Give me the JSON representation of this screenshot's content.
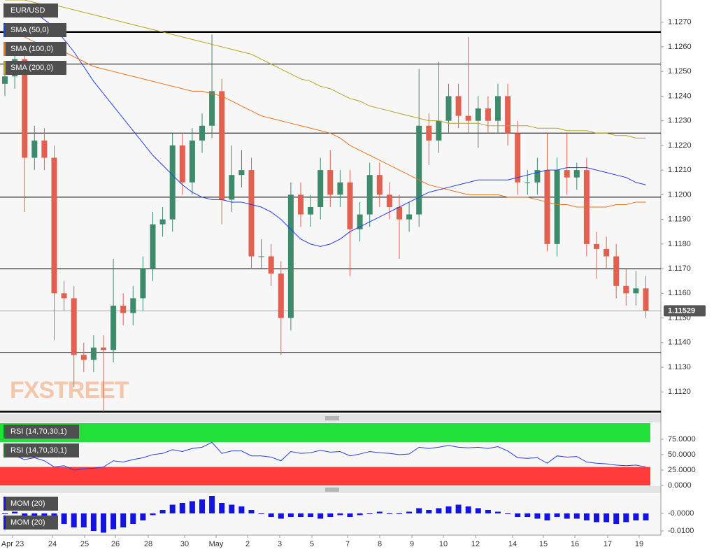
{
  "chart_data": {
    "type": "candlestick",
    "title": "EUR/USD",
    "watermark": "FXSTREET",
    "up_color": "#3d8b6b",
    "down_color": "#e2604f",
    "ylim": [
      1.1111,
      1.1279
    ],
    "yticks": [
      {
        "value": 1.112,
        "label": "1.1120"
      },
      {
        "value": 1.113,
        "label": "1.1130"
      },
      {
        "value": 1.114,
        "label": "1.1140"
      },
      {
        "value": 1.115,
        "label": "1.1150"
      },
      {
        "value": 1.116,
        "label": "1.1160"
      },
      {
        "value": 1.117,
        "label": "1.1170"
      },
      {
        "value": 1.118,
        "label": "1.1180"
      },
      {
        "value": 1.119,
        "label": "1.1190"
      },
      {
        "value": 1.12,
        "label": "1.1200"
      },
      {
        "value": 1.121,
        "label": "1.1210"
      },
      {
        "value": 1.122,
        "label": "1.1220"
      },
      {
        "value": 1.123,
        "label": "1.1230"
      },
      {
        "value": 1.124,
        "label": "1.1240"
      },
      {
        "value": 1.125,
        "label": "1.1250"
      },
      {
        "value": 1.126,
        "label": "1.1260"
      },
      {
        "value": 1.127,
        "label": "1.1270"
      }
    ],
    "levels": [
      1.1266,
      1.1253,
      1.1225,
      1.1199,
      1.117,
      1.1136,
      1.1112
    ],
    "current_price": 1.11529,
    "x_labels": [
      "Apr 23",
      "24",
      "25",
      "26",
      "28",
      "30",
      "May",
      "2",
      "3",
      "5",
      "7",
      "8",
      "9",
      "10",
      "12",
      "14",
      "15",
      "16",
      "17",
      "19"
    ],
    "open": [
      1.1245,
      1.1248,
      1.1255,
      1.1215,
      1.1222,
      1.1215,
      1.116,
      1.1158,
      1.1135,
      1.1133,
      1.1138,
      1.1137,
      1.1155,
      1.1152,
      1.1158,
      1.117,
      1.1188,
      1.119,
      1.122,
      1.1205,
      1.1222,
      1.1228,
      1.1242,
      1.1198,
      1.1208,
      1.121,
      1.1175,
      1.1175,
      1.1168,
      1.115,
      1.12,
      1.1192,
      1.1195,
      1.121,
      1.12,
      1.1205,
      1.1186,
      1.1192,
      1.1208,
      1.12,
      1.1195,
      1.119,
      1.1192,
      1.1228,
      1.1222,
      1.123,
      1.124,
      1.1232,
      1.123,
      1.1235,
      1.123,
      1.124,
      1.1225,
      1.1205,
      1.1205,
      1.121,
      1.118,
      1.121,
      1.1207,
      1.121,
      1.118,
      1.1178,
      1.1175,
      1.1163,
      1.116,
      1.1162
    ],
    "high": [
      1.1253,
      1.126,
      1.126,
      1.1228,
      1.1227,
      1.122,
      1.1165,
      1.1163,
      1.114,
      1.1143,
      1.1143,
      1.1174,
      1.116,
      1.1163,
      1.1175,
      1.1193,
      1.1195,
      1.1225,
      1.1225,
      1.1227,
      1.1233,
      1.1265,
      1.1247,
      1.122,
      1.1218,
      1.1215,
      1.1182,
      1.118,
      1.1173,
      1.1205,
      1.1205,
      1.12,
      1.1215,
      1.1218,
      1.121,
      1.121,
      1.1197,
      1.1213,
      1.1213,
      1.1205,
      1.12,
      1.1197,
      1.1251,
      1.1233,
      1.1254,
      1.1245,
      1.1245,
      1.1264,
      1.124,
      1.124,
      1.1245,
      1.1245,
      1.123,
      1.121,
      1.1215,
      1.1225,
      1.1215,
      1.1225,
      1.1213,
      1.1215,
      1.1185,
      1.1183,
      1.118,
      1.117,
      1.1169,
      1.1167
    ],
    "low": [
      1.124,
      1.1243,
      1.1193,
      1.121,
      1.121,
      1.1141,
      1.1153,
      1.1122,
      1.1128,
      1.1128,
      1.1112,
      1.1132,
      1.1147,
      1.1147,
      1.1153,
      1.1165,
      1.1183,
      1.1185,
      1.12,
      1.12,
      1.1217,
      1.1223,
      1.1188,
      1.1193,
      1.1203,
      1.117,
      1.117,
      1.1163,
      1.1135,
      1.1145,
      1.1187,
      1.1187,
      1.119,
      1.1195,
      1.1195,
      1.1167,
      1.1181,
      1.1187,
      1.1195,
      1.119,
      1.1174,
      1.1185,
      1.1187,
      1.1212,
      1.1217,
      1.1225,
      1.1227,
      1.1225,
      1.1219,
      1.1225,
      1.1225,
      1.122,
      1.12,
      1.12,
      1.12,
      1.1177,
      1.1175,
      1.12,
      1.1202,
      1.1175,
      1.1166,
      1.117,
      1.1158,
      1.1155,
      1.1155,
      1.115
    ],
    "close": [
      1.1248,
      1.1255,
      1.1215,
      1.1222,
      1.1215,
      1.116,
      1.1158,
      1.1135,
      1.1133,
      1.1138,
      1.1137,
      1.1155,
      1.1152,
      1.1158,
      1.117,
      1.1188,
      1.119,
      1.122,
      1.1205,
      1.1222,
      1.1228,
      1.1242,
      1.1198,
      1.1208,
      1.121,
      1.1175,
      1.1175,
      1.1168,
      1.115,
      1.12,
      1.1192,
      1.1195,
      1.121,
      1.12,
      1.1205,
      1.1186,
      1.1192,
      1.1208,
      1.12,
      1.1195,
      1.119,
      1.1192,
      1.1228,
      1.1222,
      1.123,
      1.124,
      1.1232,
      1.123,
      1.1235,
      1.123,
      1.124,
      1.1225,
      1.1205,
      1.1205,
      1.121,
      1.118,
      1.121,
      1.1207,
      1.121,
      1.118,
      1.1178,
      1.1175,
      1.1163,
      1.116,
      1.1162,
      1.1153
    ],
    "series": [
      {
        "name": "SMA (50,0)",
        "color": "#2340d8",
        "values": [
          1.1277,
          1.1277,
          1.1276,
          1.1274,
          1.1271,
          1.1268,
          1.1263,
          1.1258,
          1.1252,
          1.1246,
          1.1241,
          1.1236,
          1.1231,
          1.1226,
          1.1221,
          1.1216,
          1.1212,
          1.1208,
          1.1204,
          1.1201,
          1.1199,
          1.1198,
          1.1198,
          1.1197,
          1.1197,
          1.1196,
          1.1195,
          1.1193,
          1.119,
          1.1186,
          1.1182,
          1.118,
          1.1179,
          1.118,
          1.1182,
          1.1185,
          1.1187,
          1.1189,
          1.1191,
          1.1193,
          1.1195,
          1.1197,
          1.1199,
          1.1201,
          1.1202,
          1.1203,
          1.1204,
          1.1205,
          1.1206,
          1.1206,
          1.1206,
          1.1206,
          1.1207,
          1.1208,
          1.1209,
          1.121,
          1.121,
          1.1211,
          1.1211,
          1.1211,
          1.121,
          1.1209,
          1.1208,
          1.1207,
          1.1205,
          1.1204
        ]
      },
      {
        "name": "SMA (100,0)",
        "color": "#e8741c",
        "values": [
          1.1268,
          1.1266,
          1.1264,
          1.1262,
          1.1261,
          1.126,
          1.1258,
          1.1256,
          1.1254,
          1.1252,
          1.1251,
          1.125,
          1.1249,
          1.1248,
          1.1247,
          1.1246,
          1.1245,
          1.1244,
          1.1243,
          1.1242,
          1.1242,
          1.1241,
          1.124,
          1.1238,
          1.1236,
          1.1234,
          1.1232,
          1.1231,
          1.123,
          1.1229,
          1.1228,
          1.1227,
          1.1226,
          1.1225,
          1.1223,
          1.122,
          1.1218,
          1.1216,
          1.1214,
          1.1212,
          1.121,
          1.1208,
          1.1206,
          1.1204,
          1.1203,
          1.1202,
          1.1201,
          1.12,
          1.12,
          1.12,
          1.12,
          1.1199,
          1.1199,
          1.1199,
          1.1198,
          1.1197,
          1.1196,
          1.1196,
          1.1195,
          1.1195,
          1.1195,
          1.1195,
          1.1196,
          1.1196,
          1.1197,
          1.1197
        ]
      },
      {
        "name": "SMA (200,0)",
        "color": "#b5a323",
        "values": [
          1.1279,
          1.1279,
          1.1279,
          1.1278,
          1.1277,
          1.1277,
          1.1276,
          1.1275,
          1.1274,
          1.1273,
          1.1272,
          1.1271,
          1.127,
          1.1269,
          1.1268,
          1.1267,
          1.1266,
          1.1265,
          1.1264,
          1.1263,
          1.1262,
          1.1261,
          1.126,
          1.1259,
          1.1258,
          1.1257,
          1.1255,
          1.1253,
          1.1251,
          1.1249,
          1.1247,
          1.1246,
          1.1244,
          1.1243,
          1.1241,
          1.1239,
          1.1238,
          1.1236,
          1.1235,
          1.1234,
          1.1233,
          1.1232,
          1.1231,
          1.123,
          1.123,
          1.1229,
          1.1229,
          1.1229,
          1.1229,
          1.1228,
          1.1228,
          1.1228,
          1.1228,
          1.1228,
          1.1227,
          1.1227,
          1.1227,
          1.1226,
          1.1226,
          1.1226,
          1.1225,
          1.1225,
          1.1224,
          1.1224,
          1.1223,
          1.1223
        ]
      }
    ],
    "rsi": {
      "name": "RSI (14,70,30,1)",
      "color": "#2340d8",
      "overbought": 70,
      "oversold": 30,
      "ob_color": "#22e03a",
      "os_color": "#ff3b3b",
      "ylim": [
        0,
        101
      ],
      "yticks": [
        {
          "value": 0,
          "label": "0.0000"
        },
        {
          "value": 25,
          "label": "25.0000"
        },
        {
          "value": 50,
          "label": "50.0000"
        },
        {
          "value": 75,
          "label": "75.0000"
        }
      ],
      "values": [
        50,
        48,
        42,
        45,
        40,
        30,
        32,
        25,
        27,
        28,
        30,
        40,
        38,
        42,
        45,
        50,
        52,
        58,
        55,
        60,
        62,
        70,
        52,
        56,
        56,
        48,
        48,
        46,
        40,
        55,
        52,
        53,
        57,
        54,
        55,
        48,
        51,
        55,
        53,
        52,
        50,
        51,
        62,
        60,
        62,
        65,
        62,
        61,
        62,
        60,
        63,
        56,
        45,
        44,
        45,
        36,
        48,
        46,
        47,
        38,
        36,
        35,
        33,
        32,
        33,
        30
      ]
    },
    "mom": {
      "name": "MOM (20)",
      "color": "#1414e0",
      "ylim": [
        -0.0124,
        0.0116
      ],
      "yticks": [
        {
          "value": 0,
          "label": "-0.0000"
        },
        {
          "value": -0.01,
          "label": "-0.0100"
        }
      ],
      "values": [
        0,
        0.001,
        -0.002,
        -0.002,
        -0.003,
        -0.006,
        -0.006,
        -0.008,
        -0.008,
        -0.01,
        -0.011,
        -0.009,
        -0.008,
        -0.006,
        -0.004,
        -0.001,
        0.002,
        0.005,
        0.006,
        0.007,
        0.008,
        0.01,
        0.006,
        0.005,
        0.004,
        0.002,
        0,
        -0.002,
        -0.003,
        -0.002,
        -0.002,
        -0.002,
        -0.003,
        -0.002,
        -0.001,
        -0.002,
        -0.001,
        0,
        0.001,
        0,
        0,
        0.001,
        0.003,
        0.002,
        0.003,
        0.004,
        0.005,
        0.004,
        0.003,
        0.002,
        0.001,
        0,
        -0.002,
        -0.002,
        -0.003,
        -0.004,
        -0.002,
        -0.003,
        -0.003,
        -0.004,
        -0.005,
        -0.005,
        -0.006,
        -0.005,
        -0.004,
        -0.004
      ]
    }
  }
}
